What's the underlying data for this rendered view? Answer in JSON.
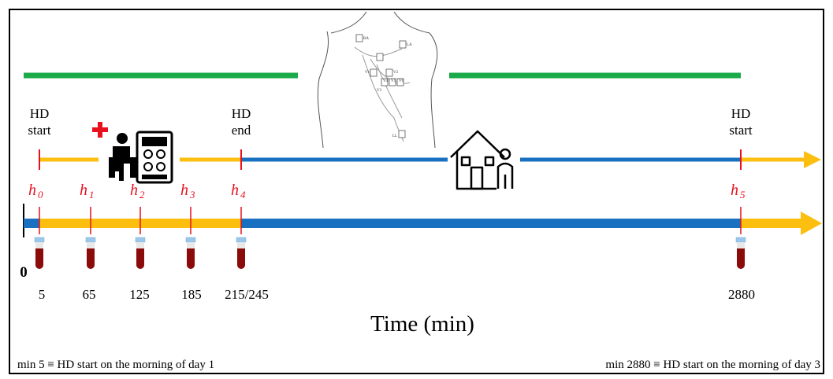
{
  "labels": {
    "hd_start_top": "HD",
    "hd_start_bottom": "start",
    "hd_end_top": "HD",
    "hd_end_bottom": "end",
    "hd_start2_top": "HD",
    "hd_start2_bottom": "start"
  },
  "timepoints": [
    {
      "var": "h",
      "sub": "0",
      "minute": "5"
    },
    {
      "var": "h",
      "sub": "1",
      "minute": "65"
    },
    {
      "var": "h",
      "sub": "2",
      "minute": "125"
    },
    {
      "var": "h",
      "sub": "3",
      "minute": "185"
    },
    {
      "var": "h",
      "sub": "4",
      "minute": "215/245"
    },
    {
      "var": "h",
      "sub": "5",
      "minute": "2880"
    }
  ],
  "origin_label": "0",
  "axis_title": "Time (min)",
  "footnote_left": "min 5 ≡ HD start on the morning of day 1",
  "footnote_right": "min 2880 ≡ HD start on the morning of day 3",
  "electrode_labels": [
    "RA",
    "LA",
    "V1",
    "V2",
    "V3",
    "V4",
    "V5",
    "V6",
    "LL"
  ],
  "colors": {
    "dialysis": "#fcbf0f",
    "interdialytic": "#1a70c0",
    "ecg_recording": "#1aaa4a",
    "marker": "#e8101c",
    "blood": "#8b0a0a",
    "cap": "#9bc8ea"
  },
  "icons": [
    "hemodialysis-patient-icon",
    "medical-cross-icon",
    "home-icon",
    "ecg-torso-icon",
    "blood-tube-icon"
  ]
}
